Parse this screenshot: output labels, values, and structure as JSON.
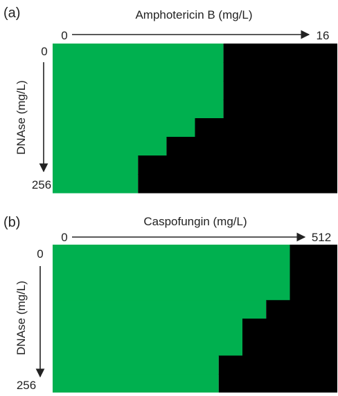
{
  "colors": {
    "growth": "#00b04f",
    "no_growth": "#000000",
    "axis": "#222222"
  },
  "panels": [
    {
      "label": "(a)",
      "x_title": "Amphotericin B (mg/L)",
      "x_start": "0",
      "x_end": "16",
      "y_title": "DNAse (mg/L)",
      "y_start": "0",
      "y_end": "256"
    },
    {
      "label": "(b)",
      "x_title": "Caspofungin (mg/L)",
      "x_start": "0",
      "x_end": "512",
      "y_title": "DNAse (mg/L)",
      "y_start": "0",
      "y_end": "256"
    }
  ],
  "chart_data": [
    {
      "type": "heatmap",
      "title": "",
      "xlabel": "Amphotericin B (mg/L)",
      "ylabel": "DNAse (mg/L)",
      "x_range": [
        0,
        16
      ],
      "y_range": [
        0,
        256
      ],
      "legend": "none",
      "grid": false,
      "rows": 8,
      "columns": 10,
      "growth_boundary_columns_per_row": [
        6,
        6,
        6,
        6,
        5,
        4,
        3,
        3
      ]
    },
    {
      "type": "heatmap",
      "title": "",
      "xlabel": "Caspofungin (mg/L)",
      "ylabel": "DNAse (mg/L)",
      "x_range": [
        0,
        512
      ],
      "y_range": [
        0,
        256
      ],
      "legend": "none",
      "grid": false,
      "rows": 8,
      "columns": 12,
      "growth_boundary_columns_per_row": [
        10,
        10,
        10,
        9,
        8,
        8,
        7,
        7
      ]
    }
  ]
}
